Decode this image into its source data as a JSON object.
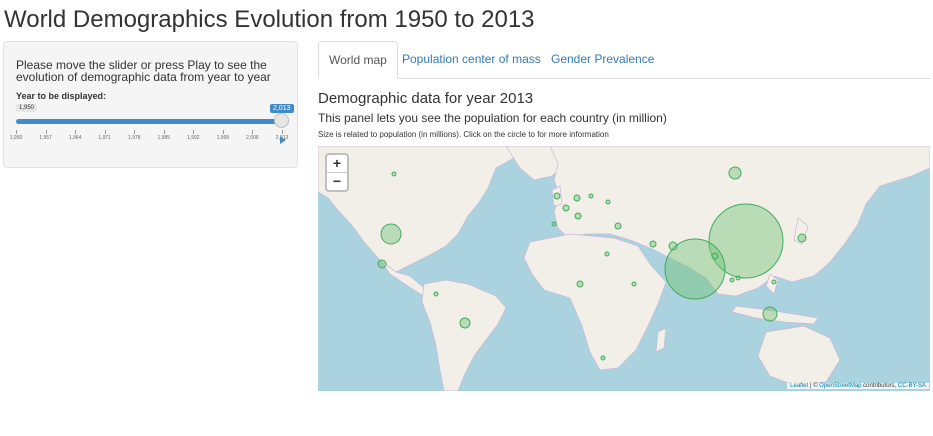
{
  "page": {
    "title": "World Demographics Evolution from 1950 to 2013"
  },
  "sidebar": {
    "instructions": "Please move the slider or press Play to see the evolution of demographic data from year to year",
    "slider": {
      "label": "Year to be displayed:",
      "min": "1,950",
      "value": "2,013",
      "tick_labels": [
        "1,950",
        "1,957",
        "1,964",
        "1,971",
        "1,978",
        "1,985",
        "1,992",
        "1,999",
        "2,006",
        "2,013"
      ]
    }
  },
  "tabs": [
    {
      "label": "World map",
      "active": true
    },
    {
      "label": "Population center of mass",
      "active": false
    },
    {
      "label": "Gender Prevalence",
      "active": false
    }
  ],
  "panel": {
    "heading": "Demographic data for year 2013",
    "subheading": "This panel lets you see the population for each country (in million)",
    "note": "Size is related to population (in millions). Click on the circle to for more information"
  },
  "map": {
    "zoom_in": "+",
    "zoom_out": "−",
    "attribution": {
      "leaflet": "Leaflet",
      "sep": " | © ",
      "osm": "OpenStreetMap",
      "contrib": " contributors, ",
      "license": "CC-BY-SA"
    },
    "colors": {
      "water": "#aad3df",
      "land": "#f2efe9",
      "border": "#c9b8d6",
      "circle_fill": "#74c476",
      "circle_stroke": "#41ab5d"
    },
    "population_circles": [
      {
        "name": "china",
        "rel_size": 1.0
      },
      {
        "name": "india",
        "rel_size": 0.82
      },
      {
        "name": "usa",
        "rel_size": 0.27
      },
      {
        "name": "indonesia",
        "rel_size": 0.19
      },
      {
        "name": "russia",
        "rel_size": 0.17
      },
      {
        "name": "brazil",
        "rel_size": 0.14
      }
    ]
  }
}
